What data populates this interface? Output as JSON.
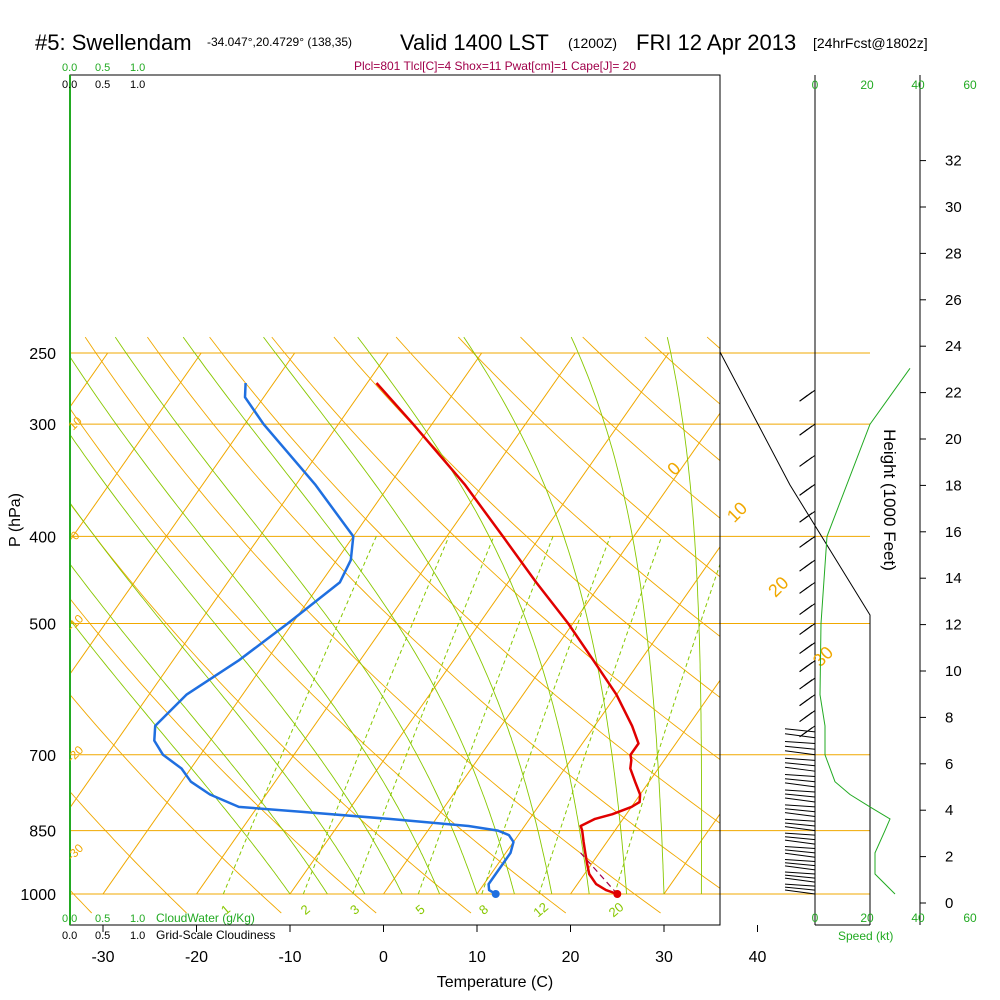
{
  "header": {
    "station": "#5: Swellendam",
    "coords": "-34.047°,20.4729° (138,35)",
    "valid": "Valid 1400 LST",
    "utc": "(1200Z)",
    "date": "FRI 12 Apr 2013",
    "forecast": "[24hrFcst@1802z]",
    "indices": "Plcl=801 Tlcl[C]=4 Shox=11 Pwat[cm]=1 Cape[J]= 20"
  },
  "colors": {
    "temperature": "#e00000",
    "dewpoint": "#1f6fe0",
    "isotherm": "#f0a800",
    "dry_adiabat": "#f0a800",
    "moist_adiabat": "#88c800",
    "mixing_ratio": "#88c800",
    "cloud_scale": "#22aa22",
    "indices": "#a0004a",
    "wind": "#000000"
  },
  "chart_data": {
    "type": "skew-t log-p sounding",
    "xlabel": "Temperature (C)",
    "ylabel": "P (hPa)",
    "right_axis_label": "Height (1000 Feet)",
    "x_ticks": [
      "-30",
      "-20",
      "-10",
      "0",
      "10",
      "20",
      "30",
      "40"
    ],
    "xlim": [
      -35,
      46
    ],
    "p_ticks": [
      "250",
      "300",
      "400",
      "500",
      "700",
      "850",
      "1000"
    ],
    "plim": [
      250,
      1000
    ],
    "height_ticks": [
      "0",
      "2",
      "4",
      "6",
      "8",
      "10",
      "12",
      "14",
      "16",
      "18",
      "20",
      "22",
      "24",
      "26",
      "28",
      "30",
      "32"
    ],
    "isotherm_labels": [
      "10",
      "0",
      "-10",
      "-20",
      "-30",
      "0",
      "10",
      "20",
      "30"
    ],
    "mixing_ratio_labels": [
      "1",
      "2",
      "3",
      "5",
      "8",
      "12",
      "20"
    ],
    "cloud_scale_top": {
      "green": [
        "0.0",
        "0.5",
        "1.0"
      ],
      "black": [
        "0.0",
        "0.5",
        "1.0"
      ]
    },
    "cloud_scale_bottom": {
      "green": [
        "0.0",
        "0.5",
        "1.0"
      ],
      "green_label": "CloudWater (g/Kg)",
      "black": [
        "0.0",
        "0.5",
        "1.0"
      ],
      "black_label": "Grid-Scale Cloudiness"
    },
    "speed_ticks_top": [
      "0",
      "20",
      "40",
      "60"
    ],
    "speed_ticks_bottom": [
      "0",
      "20",
      "40",
      "60"
    ],
    "speed_label": "Speed (kt)",
    "temperature_profile": [
      {
        "p": 1000,
        "t": 25
      },
      {
        "p": 990,
        "t": 23.5
      },
      {
        "p": 975,
        "t": 22
      },
      {
        "p": 950,
        "t": 20.5
      },
      {
        "p": 925,
        "t": 19.5
      },
      {
        "p": 900,
        "t": 18.5
      },
      {
        "p": 875,
        "t": 17.5
      },
      {
        "p": 850,
        "t": 16.5
      },
      {
        "p": 840,
        "t": 16
      },
      {
        "p": 825,
        "t": 17
      },
      {
        "p": 815,
        "t": 18.5
      },
      {
        "p": 800,
        "t": 20
      },
      {
        "p": 790,
        "t": 20.5
      },
      {
        "p": 775,
        "t": 20
      },
      {
        "p": 750,
        "t": 18.5
      },
      {
        "p": 725,
        "t": 17
      },
      {
        "p": 710,
        "t": 16.5
      },
      {
        "p": 700,
        "t": 16
      },
      {
        "p": 680,
        "t": 16
      },
      {
        "p": 650,
        "t": 14
      },
      {
        "p": 600,
        "t": 10
      },
      {
        "p": 550,
        "t": 5
      },
      {
        "p": 500,
        "t": -0.5
      },
      {
        "p": 450,
        "t": -7
      },
      {
        "p": 400,
        "t": -14
      },
      {
        "p": 350,
        "t": -22
      },
      {
        "p": 300,
        "t": -32
      },
      {
        "p": 270,
        "t": -39
      }
    ],
    "dewpoint_profile": [
      {
        "p": 1000,
        "t": 12
      },
      {
        "p": 990,
        "t": 11
      },
      {
        "p": 975,
        "t": 10.5
      },
      {
        "p": 950,
        "t": 10.5
      },
      {
        "p": 925,
        "t": 10.5
      },
      {
        "p": 900,
        "t": 10.5
      },
      {
        "p": 875,
        "t": 10
      },
      {
        "p": 860,
        "t": 9
      },
      {
        "p": 850,
        "t": 7.5
      },
      {
        "p": 840,
        "t": 4
      },
      {
        "p": 825,
        "t": -5
      },
      {
        "p": 810,
        "t": -15
      },
      {
        "p": 800,
        "t": -22
      },
      {
        "p": 775,
        "t": -26
      },
      {
        "p": 750,
        "t": -29
      },
      {
        "p": 725,
        "t": -31
      },
      {
        "p": 700,
        "t": -34
      },
      {
        "p": 675,
        "t": -36
      },
      {
        "p": 650,
        "t": -37
      },
      {
        "p": 600,
        "t": -36
      },
      {
        "p": 550,
        "t": -33
      },
      {
        "p": 500,
        "t": -30.5
      },
      {
        "p": 450,
        "t": -28
      },
      {
        "p": 425,
        "t": -28.5
      },
      {
        "p": 400,
        "t": -30
      },
      {
        "p": 350,
        "t": -38
      },
      {
        "p": 300,
        "t": -48
      },
      {
        "p": 280,
        "t": -52
      },
      {
        "p": 270,
        "t": -53
      }
    ],
    "surface_temperature_c": 25,
    "surface_dewpoint_c": 12,
    "parcel_path": [
      {
        "p": 1000,
        "t": 25
      },
      {
        "p": 900,
        "t": 18
      }
    ],
    "cloud_water_profile": [
      {
        "p": 1000,
        "k": 0.8
      },
      {
        "p": 950,
        "k": 0.6
      },
      {
        "p": 900,
        "k": 0.6
      },
      {
        "p": 850,
        "k": 0.7
      },
      {
        "p": 825,
        "k": 0.75
      },
      {
        "p": 800,
        "k": 0.55
      },
      {
        "p": 775,
        "k": 0.35
      },
      {
        "p": 750,
        "k": 0.2
      },
      {
        "p": 700,
        "k": 0.1
      },
      {
        "p": 650,
        "k": 0.1
      },
      {
        "p": 600,
        "k": 0.05
      },
      {
        "p": 500,
        "k": 0.06
      },
      {
        "p": 400,
        "k": 0.12
      },
      {
        "p": 300,
        "k": 0.55
      },
      {
        "p": 260,
        "k": 0.95
      }
    ]
  }
}
